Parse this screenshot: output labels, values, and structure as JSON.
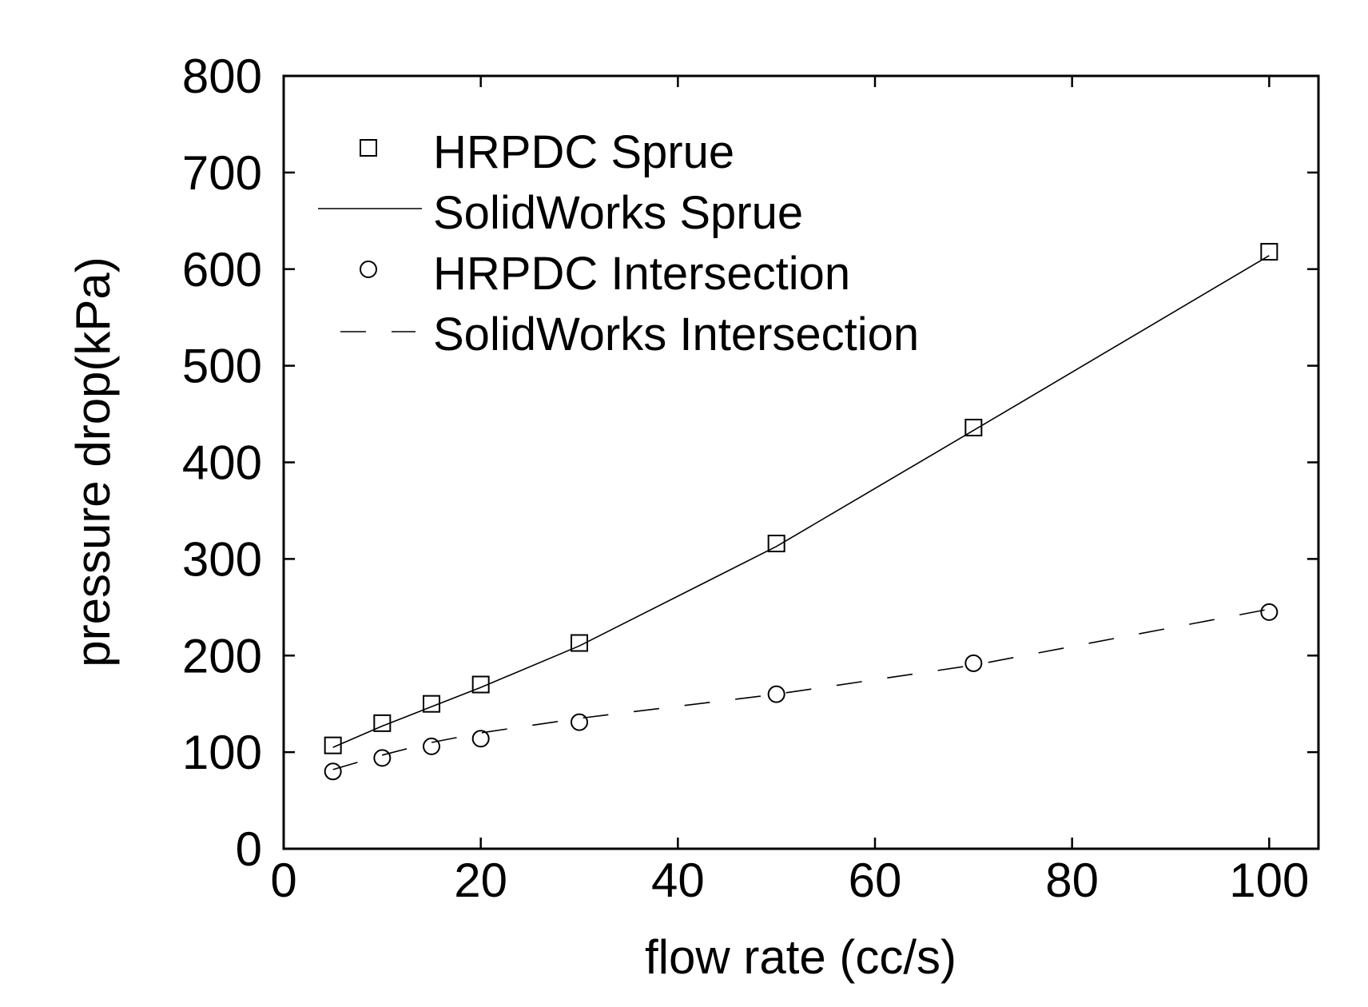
{
  "chart_data": {
    "type": "line",
    "title": "",
    "xlabel": "flow rate (cc/s)",
    "ylabel": "pressure drop(kPa)",
    "xlim": [
      0,
      105
    ],
    "ylim": [
      0,
      800
    ],
    "xticks": [
      0,
      20,
      40,
      60,
      80,
      100
    ],
    "yticks": [
      0,
      100,
      200,
      300,
      400,
      500,
      600,
      700,
      800
    ],
    "xtick_labels": [
      "0",
      "20",
      "40",
      "60",
      "80",
      "100"
    ],
    "ytick_labels": [
      "0",
      "100",
      "200",
      "300",
      "400",
      "500",
      "600",
      "700",
      "800"
    ],
    "grid": false,
    "legend_position": "top-left",
    "series": [
      {
        "name": "HRPDC Sprue",
        "style": "markers",
        "marker": "square",
        "x": [
          5,
          10,
          15,
          20,
          30,
          50,
          70,
          100
        ],
        "y": [
          107,
          130,
          150,
          170,
          213,
          316,
          436,
          618
        ]
      },
      {
        "name": "SolidWorks  Sprue",
        "style": "solid-line",
        "x": [
          5,
          10,
          15,
          20,
          30,
          50,
          70,
          100
        ],
        "y": [
          105,
          127,
          147,
          167,
          210,
          313,
          433,
          614
        ]
      },
      {
        "name": "HRPDC Intersection",
        "style": "markers",
        "marker": "circle",
        "x": [
          5,
          10,
          15,
          20,
          30,
          50,
          70,
          100
        ],
        "y": [
          80,
          94,
          106,
          114,
          131,
          160,
          192,
          245
        ]
      },
      {
        "name": "SolidWorks Intersection",
        "style": "dashed-line",
        "x": [
          5,
          10,
          15,
          20,
          30,
          50,
          70,
          100
        ],
        "y": [
          82,
          97,
          110,
          120,
          135,
          160,
          190,
          248
        ]
      }
    ]
  }
}
